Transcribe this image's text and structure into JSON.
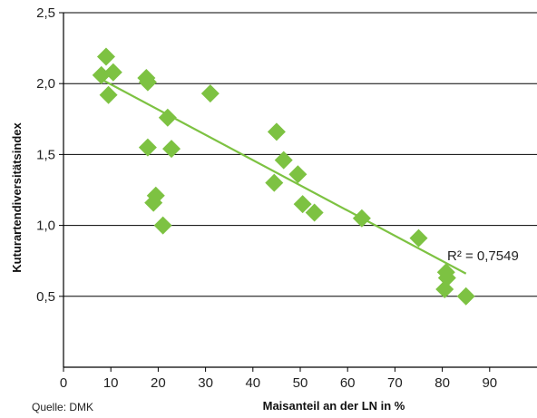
{
  "chart_data": {
    "type": "scatter",
    "xlabel": "Maisanteil an der LN in %",
    "ylabel": "Kuturartendiversitätsindex",
    "source": "Quelle: DMK",
    "xlim": [
      0,
      100
    ],
    "ylim": [
      0,
      2.5
    ],
    "x_ticks": [
      0,
      10,
      20,
      30,
      40,
      50,
      60,
      70,
      80,
      90
    ],
    "x_tick_labels": [
      "0",
      "10",
      "20",
      "30",
      "40",
      "50",
      "60",
      "70",
      "80",
      "90"
    ],
    "y_ticks": [
      0.5,
      1.0,
      1.5,
      2.0,
      2.5
    ],
    "y_tick_labels": [
      "0,5",
      "1,0",
      "1,5",
      "2,0",
      "2,5"
    ],
    "grid": "horizontal",
    "marker_color": "#7dc242",
    "line_color": "#7dc242",
    "points": [
      {
        "x": 8,
        "y": 2.06
      },
      {
        "x": 9,
        "y": 2.19
      },
      {
        "x": 9.5,
        "y": 1.92
      },
      {
        "x": 10.5,
        "y": 2.08
      },
      {
        "x": 17.5,
        "y": 2.04
      },
      {
        "x": 17.8,
        "y": 2.01
      },
      {
        "x": 17.8,
        "y": 1.55
      },
      {
        "x": 19,
        "y": 1.16
      },
      {
        "x": 19.5,
        "y": 1.21
      },
      {
        "x": 21,
        "y": 1.0
      },
      {
        "x": 22,
        "y": 1.76
      },
      {
        "x": 22.8,
        "y": 1.54
      },
      {
        "x": 31,
        "y": 1.93
      },
      {
        "x": 44.5,
        "y": 1.3
      },
      {
        "x": 45,
        "y": 1.66
      },
      {
        "x": 46.5,
        "y": 1.46
      },
      {
        "x": 49.5,
        "y": 1.36
      },
      {
        "x": 50.5,
        "y": 1.15
      },
      {
        "x": 53,
        "y": 1.09
      },
      {
        "x": 63,
        "y": 1.05
      },
      {
        "x": 75,
        "y": 0.91
      },
      {
        "x": 80.5,
        "y": 0.55
      },
      {
        "x": 80.8,
        "y": 0.67
      },
      {
        "x": 81,
        "y": 0.63
      },
      {
        "x": 85,
        "y": 0.5
      }
    ],
    "trendline": {
      "x": [
        8,
        85
      ],
      "y": [
        2.03,
        0.66
      ]
    },
    "annotation": "R² = 0,7549"
  }
}
